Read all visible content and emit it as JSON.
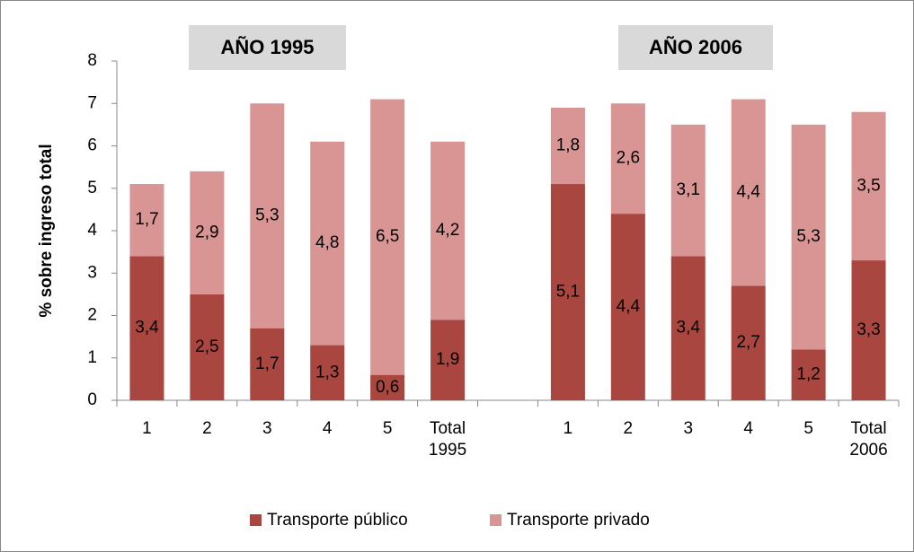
{
  "chart_data": {
    "type": "stacked_bar",
    "annotations": [
      "AÑO 1995",
      "AÑO 2006"
    ],
    "y_label": "% sobre ingreso total",
    "categories": [
      "1",
      "2",
      "3",
      "4",
      "5",
      "Total 1995",
      null,
      "1",
      "2",
      "3",
      "4",
      "5",
      "Total 2006"
    ],
    "series": [
      {
        "name": "Transporte público",
        "color": "#a8463f",
        "values": [
          3.4,
          2.5,
          1.7,
          1.3,
          0.6,
          1.9,
          null,
          5.1,
          4.4,
          3.4,
          2.7,
          1.2,
          3.3
        ],
        "value_labels": [
          "3,4",
          "2,5",
          "1,7",
          "1,3",
          "0,6",
          "1,9",
          null,
          "5,1",
          "4,4",
          "3,4",
          "2,7",
          "1,2",
          "3,3"
        ]
      },
      {
        "name": "Transporte privado",
        "color": "#d99594",
        "values": [
          1.7,
          2.9,
          5.3,
          4.8,
          6.5,
          4.2,
          null,
          1.8,
          2.6,
          3.1,
          4.4,
          5.3,
          3.5
        ],
        "value_labels": [
          "1,7",
          "2,9",
          "5,3",
          "4,8",
          "6,5",
          "4,2",
          null,
          "1,8",
          "2,6",
          "3,1",
          "4,4",
          "5,3",
          "3,5"
        ]
      }
    ],
    "ylim": [
      0,
      8
    ],
    "yticks": [
      0,
      1,
      2,
      3,
      4,
      5,
      6,
      7,
      8
    ],
    "grid": false,
    "legend": "bottom"
  }
}
